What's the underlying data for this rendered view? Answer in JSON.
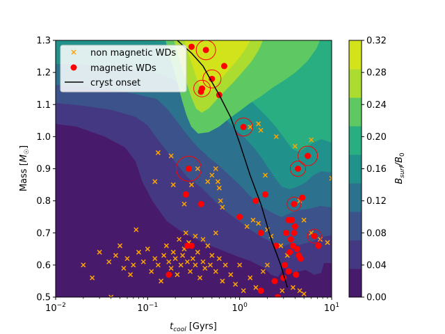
{
  "chart_data": {
    "type": "scatter",
    "xlabel": "t_cool [Gyrs]",
    "ylabel": "Mass [M_☉]",
    "x_scale": "log",
    "xlim": [
      0.01,
      10
    ],
    "ylim": [
      0.5,
      1.3
    ],
    "x_ticks": [
      {
        "value": 0.01,
        "base": "10",
        "exp": "−2"
      },
      {
        "value": 0.1,
        "base": "10",
        "exp": "−1"
      },
      {
        "value": 1,
        "base": "10",
        "exp": "0"
      },
      {
        "value": 10,
        "base": "10",
        "exp": "1"
      }
    ],
    "y_ticks": [
      "0.5",
      "0.6",
      "0.7",
      "0.8",
      "0.9",
      "1.0",
      "1.1",
      "1.2",
      "1.3"
    ],
    "y_tick_values": [
      0.5,
      0.6,
      0.7,
      0.8,
      0.9,
      1.0,
      1.1,
      1.2,
      1.3
    ],
    "legend": {
      "placement": "upper-left",
      "entries": [
        {
          "label": "non magnetic WDs",
          "marker": "x",
          "color": "#ffa500"
        },
        {
          "label": "magnetic WDs",
          "marker": "circle",
          "color": "#ff0000"
        },
        {
          "label": "cryst onset",
          "marker": "line",
          "color": "#000000"
        }
      ]
    },
    "colorbar": {
      "label": "B_surf/B_0",
      "ticks": [
        "0.00",
        "0.04",
        "0.08",
        "0.12",
        "0.16",
        "0.20",
        "0.24",
        "0.28",
        "0.32"
      ],
      "levels": [
        0,
        0.04,
        0.08,
        0.12,
        0.16,
        0.2,
        0.24,
        0.28,
        0.32
      ],
      "colors": [
        "#481a6c",
        "#453882",
        "#3b528b",
        "#2c728e",
        "#21918c",
        "#28ae80",
        "#5ec962",
        "#addc30",
        "#d2e21b"
      ]
    },
    "cryst_onset": {
      "x": [
        0.21,
        0.3,
        0.4,
        0.5,
        0.6,
        0.8,
        1.0,
        1.3,
        1.7,
        2.2,
        2.8,
        3.3
      ],
      "y": [
        1.3,
        1.26,
        1.22,
        1.17,
        1.13,
        1.06,
        0.98,
        0.88,
        0.79,
        0.68,
        0.6,
        0.53
      ]
    },
    "magnetic_wds": [
      {
        "x": 0.26,
        "y": 0.82,
        "ring": 0
      },
      {
        "x": 0.28,
        "y": 0.9,
        "ring": 14
      },
      {
        "x": 0.3,
        "y": 1.28,
        "ring": 0
      },
      {
        "x": 0.38,
        "y": 1.14,
        "ring": 0
      },
      {
        "x": 0.39,
        "y": 1.15,
        "ring": 8
      },
      {
        "x": 0.43,
        "y": 1.27,
        "ring": 10
      },
      {
        "x": 0.5,
        "y": 1.18,
        "ring": 9
      },
      {
        "x": 0.6,
        "y": 1.13,
        "ring": 0
      },
      {
        "x": 0.68,
        "y": 1.22,
        "ring": 0
      },
      {
        "x": 1.1,
        "y": 1.03,
        "ring": 9
      },
      {
        "x": 0.38,
        "y": 0.79,
        "ring": 0
      },
      {
        "x": 1.0,
        "y": 0.75,
        "ring": 0
      },
      {
        "x": 1.5,
        "y": 0.8,
        "ring": 0
      },
      {
        "x": 1.9,
        "y": 0.82,
        "ring": 0
      },
      {
        "x": 1.7,
        "y": 0.7,
        "ring": 0
      },
      {
        "x": 0.3,
        "y": 0.66,
        "ring": 0
      },
      {
        "x": 0.27,
        "y": 0.66,
        "ring": 0
      },
      {
        "x": 0.17,
        "y": 0.57,
        "ring": 0
      },
      {
        "x": 1.7,
        "y": 0.52,
        "ring": 0
      },
      {
        "x": 2.4,
        "y": 0.55,
        "ring": 0
      },
      {
        "x": 2.6,
        "y": 0.5,
        "ring": 0
      },
      {
        "x": 2.5,
        "y": 0.66,
        "ring": 0
      },
      {
        "x": 3.2,
        "y": 0.7,
        "ring": 0
      },
      {
        "x": 3.4,
        "y": 0.74,
        "ring": 0
      },
      {
        "x": 3.7,
        "y": 0.74,
        "ring": 0
      },
      {
        "x": 3.9,
        "y": 0.79,
        "ring": 6
      },
      {
        "x": 4.0,
        "y": 0.72,
        "ring": 0
      },
      {
        "x": 4.3,
        "y": 0.9,
        "ring": 7
      },
      {
        "x": 4.6,
        "y": 0.62,
        "ring": 0
      },
      {
        "x": 4.8,
        "y": 0.81,
        "ring": 0
      },
      {
        "x": 5.5,
        "y": 0.94,
        "ring": 10
      },
      {
        "x": 6.5,
        "y": 0.69,
        "ring": 6
      },
      {
        "x": 7.2,
        "y": 0.66,
        "ring": 0
      },
      {
        "x": 3.6,
        "y": 0.68,
        "ring": 0
      },
      {
        "x": 3.8,
        "y": 0.66,
        "ring": 0
      },
      {
        "x": 4.2,
        "y": 0.65,
        "ring": 0
      },
      {
        "x": 3.1,
        "y": 0.6,
        "ring": 0
      },
      {
        "x": 3.4,
        "y": 0.58,
        "ring": 0
      },
      {
        "x": 3.0,
        "y": 0.56,
        "ring": 0
      },
      {
        "x": 4.1,
        "y": 0.57,
        "ring": 0
      },
      {
        "x": 4.4,
        "y": 0.63,
        "ring": 0
      },
      {
        "x": 3.9,
        "y": 0.7,
        "ring": 0
      },
      {
        "x": 3.5,
        "y": 0.64,
        "ring": 0
      }
    ],
    "non_magnetic_wds": [
      {
        "x": 0.02,
        "y": 0.6
      },
      {
        "x": 0.025,
        "y": 0.56
      },
      {
        "x": 0.03,
        "y": 0.64
      },
      {
        "x": 0.038,
        "y": 0.61
      },
      {
        "x": 0.04,
        "y": 0.5
      },
      {
        "x": 0.045,
        "y": 0.63
      },
      {
        "x": 0.05,
        "y": 0.66
      },
      {
        "x": 0.055,
        "y": 0.59
      },
      {
        "x": 0.06,
        "y": 0.62
      },
      {
        "x": 0.065,
        "y": 0.57
      },
      {
        "x": 0.07,
        "y": 0.6
      },
      {
        "x": 0.075,
        "y": 0.71
      },
      {
        "x": 0.08,
        "y": 0.64
      },
      {
        "x": 0.09,
        "y": 0.61
      },
      {
        "x": 0.1,
        "y": 0.65
      },
      {
        "x": 0.11,
        "y": 0.58
      },
      {
        "x": 0.12,
        "y": 0.62
      },
      {
        "x": 0.13,
        "y": 0.6
      },
      {
        "x": 0.14,
        "y": 0.55
      },
      {
        "x": 0.15,
        "y": 0.63
      },
      {
        "x": 0.16,
        "y": 0.66
      },
      {
        "x": 0.17,
        "y": 0.61
      },
      {
        "x": 0.18,
        "y": 0.59
      },
      {
        "x": 0.19,
        "y": 0.64
      },
      {
        "x": 0.2,
        "y": 0.62
      },
      {
        "x": 0.21,
        "y": 0.57
      },
      {
        "x": 0.22,
        "y": 0.68
      },
      {
        "x": 0.23,
        "y": 0.6
      },
      {
        "x": 0.24,
        "y": 0.63
      },
      {
        "x": 0.25,
        "y": 0.65
      },
      {
        "x": 0.27,
        "y": 0.61
      },
      {
        "x": 0.29,
        "y": 0.58
      },
      {
        "x": 0.31,
        "y": 0.62
      },
      {
        "x": 0.33,
        "y": 0.6
      },
      {
        "x": 0.35,
        "y": 0.64
      },
      {
        "x": 0.37,
        "y": 0.56
      },
      {
        "x": 0.4,
        "y": 0.61
      },
      {
        "x": 0.42,
        "y": 0.59
      },
      {
        "x": 0.45,
        "y": 0.66
      },
      {
        "x": 0.48,
        "y": 0.6
      },
      {
        "x": 0.5,
        "y": 0.63
      },
      {
        "x": 0.55,
        "y": 0.58
      },
      {
        "x": 0.6,
        "y": 0.62
      },
      {
        "x": 0.65,
        "y": 0.55
      },
      {
        "x": 0.7,
        "y": 0.6
      },
      {
        "x": 0.8,
        "y": 0.57
      },
      {
        "x": 0.9,
        "y": 0.54
      },
      {
        "x": 1.0,
        "y": 0.6
      },
      {
        "x": 1.1,
        "y": 0.52
      },
      {
        "x": 1.3,
        "y": 0.56
      },
      {
        "x": 1.5,
        "y": 0.53
      },
      {
        "x": 1.8,
        "y": 0.58
      },
      {
        "x": 2.0,
        "y": 0.6
      },
      {
        "x": 0.13,
        "y": 0.95
      },
      {
        "x": 0.12,
        "y": 0.86
      },
      {
        "x": 0.18,
        "y": 0.94
      },
      {
        "x": 0.19,
        "y": 0.85
      },
      {
        "x": 0.25,
        "y": 0.79
      },
      {
        "x": 0.3,
        "y": 0.85
      },
      {
        "x": 0.35,
        "y": 0.9
      },
      {
        "x": 0.45,
        "y": 0.86
      },
      {
        "x": 0.5,
        "y": 0.88
      },
      {
        "x": 0.55,
        "y": 0.9
      },
      {
        "x": 0.58,
        "y": 0.86
      },
      {
        "x": 0.6,
        "y": 0.84
      },
      {
        "x": 0.62,
        "y": 0.8
      },
      {
        "x": 0.65,
        "y": 0.78
      },
      {
        "x": 1.3,
        "y": 1.03
      },
      {
        "x": 1.6,
        "y": 1.04
      },
      {
        "x": 1.7,
        "y": 1.02
      },
      {
        "x": 1.9,
        "y": 0.88
      },
      {
        "x": 2.5,
        "y": 1.0
      },
      {
        "x": 4.0,
        "y": 0.97
      },
      {
        "x": 6.0,
        "y": 0.99
      },
      {
        "x": 1.2,
        "y": 0.72
      },
      {
        "x": 1.4,
        "y": 0.74
      },
      {
        "x": 1.6,
        "y": 0.73
      },
      {
        "x": 2.0,
        "y": 0.71
      },
      {
        "x": 2.2,
        "y": 0.69
      },
      {
        "x": 2.8,
        "y": 0.66
      },
      {
        "x": 3.3,
        "y": 0.63
      },
      {
        "x": 4.5,
        "y": 0.8
      },
      {
        "x": 5.0,
        "y": 0.74
      },
      {
        "x": 6.0,
        "y": 0.7
      },
      {
        "x": 7.5,
        "y": 0.68
      },
      {
        "x": 9.0,
        "y": 0.67
      },
      {
        "x": 10.0,
        "y": 0.87
      },
      {
        "x": 4.5,
        "y": 0.52
      },
      {
        "x": 5.0,
        "y": 0.51
      },
      {
        "x": 3.8,
        "y": 0.53
      },
      {
        "x": 2.9,
        "y": 0.52
      },
      {
        "x": 0.26,
        "y": 0.7
      },
      {
        "x": 0.28,
        "y": 0.67
      },
      {
        "x": 0.33,
        "y": 0.69
      },
      {
        "x": 0.4,
        "y": 0.68
      },
      {
        "x": 0.55,
        "y": 0.7
      }
    ]
  }
}
